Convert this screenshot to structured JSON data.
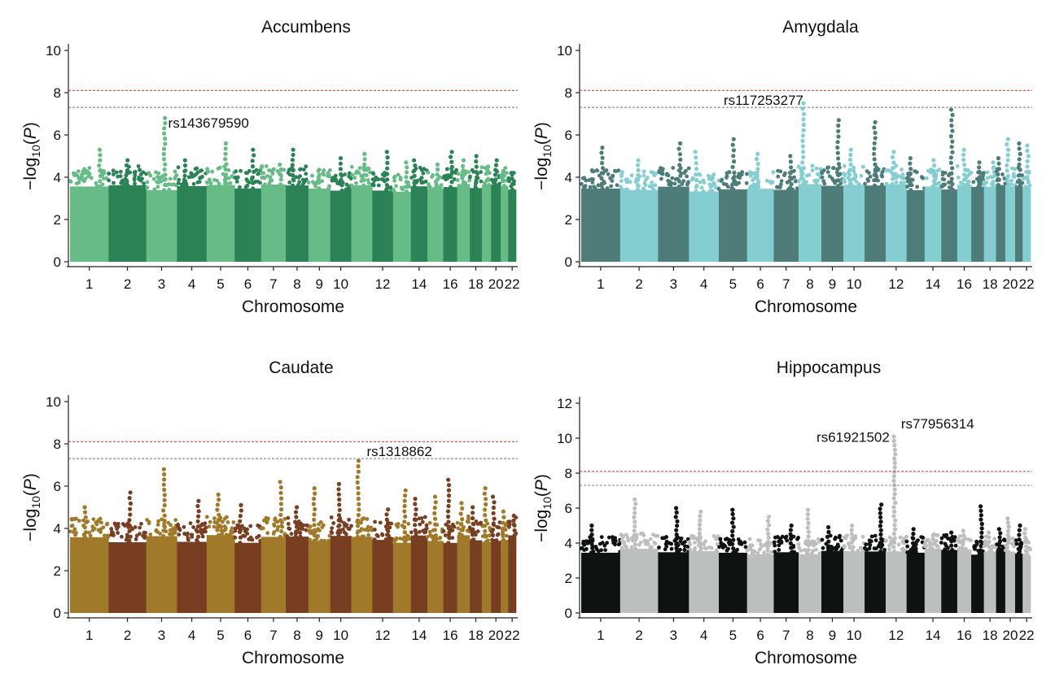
{
  "chart_data": [
    {
      "type": "scatter",
      "title": "Accumbens",
      "xlabel": "Chromosome",
      "ylabel": "−log10(P)",
      "ylim": [
        0,
        10
      ],
      "yticks": [
        0,
        2,
        4,
        6,
        8,
        10
      ],
      "xtick_labels": [
        "1",
        "2",
        "3",
        "4",
        "5",
        "6",
        "7",
        "8",
        "9",
        "10",
        "12",
        "14",
        "16",
        "18",
        "20",
        "22"
      ],
      "colors": [
        "#66bb86",
        "#2a8255"
      ],
      "thresholds": [
        {
          "value": 8.1,
          "color": "#e0534a"
        },
        {
          "value": 7.3,
          "color": "#9a9a9a"
        }
      ],
      "chromosomes": [
        {
          "chr": 1,
          "max": 5.3
        },
        {
          "chr": 2,
          "max": 4.8
        },
        {
          "chr": 3,
          "max": 6.8
        },
        {
          "chr": 4,
          "max": 4.8
        },
        {
          "chr": 5,
          "max": 5.6
        },
        {
          "chr": 6,
          "max": 5.3
        },
        {
          "chr": 7,
          "max": 4.6
        },
        {
          "chr": 8,
          "max": 5.3
        },
        {
          "chr": 9,
          "max": 4.3
        },
        {
          "chr": 10,
          "max": 4.9
        },
        {
          "chr": 11,
          "max": 5.1
        },
        {
          "chr": 12,
          "max": 5.2
        },
        {
          "chr": 13,
          "max": 4.7
        },
        {
          "chr": 14,
          "max": 4.8
        },
        {
          "chr": 15,
          "max": 4.6
        },
        {
          "chr": 16,
          "max": 5.2
        },
        {
          "chr": 17,
          "max": 4.8
        },
        {
          "chr": 18,
          "max": 5.0
        },
        {
          "chr": 19,
          "max": 4.5
        },
        {
          "chr": 20,
          "max": 4.8
        },
        {
          "chr": 21,
          "max": 4.3
        },
        {
          "chr": 22,
          "max": 4.2
        }
      ],
      "annotations": [
        {
          "text": "rs143679590",
          "chr": 3,
          "y": 6.8
        }
      ]
    },
    {
      "type": "scatter",
      "title": "Amygdala",
      "xlabel": "Chromosome",
      "ylabel": "−log10(P)",
      "ylim": [
        0,
        10
      ],
      "yticks": [
        0,
        2,
        4,
        6,
        8,
        10
      ],
      "xtick_labels": [
        "1",
        "2",
        "3",
        "4",
        "5",
        "6",
        "7",
        "8",
        "9",
        "10",
        "12",
        "14",
        "16",
        "18",
        "20",
        "22"
      ],
      "colors": [
        "#4e7c79",
        "#84ced2"
      ],
      "thresholds": [
        {
          "value": 8.1,
          "color": "#e0534a"
        },
        {
          "value": 7.3,
          "color": "#9a9a9a"
        }
      ],
      "chromosomes": [
        {
          "chr": 1,
          "max": 5.4
        },
        {
          "chr": 2,
          "max": 4.8
        },
        {
          "chr": 3,
          "max": 5.6
        },
        {
          "chr": 4,
          "max": 5.2
        },
        {
          "chr": 5,
          "max": 5.8
        },
        {
          "chr": 6,
          "max": 5.1
        },
        {
          "chr": 7,
          "max": 5.0
        },
        {
          "chr": 8,
          "max": 7.5
        },
        {
          "chr": 9,
          "max": 6.7
        },
        {
          "chr": 10,
          "max": 5.3
        },
        {
          "chr": 11,
          "max": 6.6
        },
        {
          "chr": 12,
          "max": 5.2
        },
        {
          "chr": 13,
          "max": 4.9
        },
        {
          "chr": 14,
          "max": 4.8
        },
        {
          "chr": 15,
          "max": 7.2
        },
        {
          "chr": 16,
          "max": 5.3
        },
        {
          "chr": 17,
          "max": 4.7
        },
        {
          "chr": 18,
          "max": 4.7
        },
        {
          "chr": 19,
          "max": 4.9
        },
        {
          "chr": 20,
          "max": 5.8
        },
        {
          "chr": 21,
          "max": 5.6
        },
        {
          "chr": 22,
          "max": 5.5
        }
      ],
      "annotations": [
        {
          "text": "rs117253277",
          "chr": 8,
          "y": 7.5
        }
      ]
    },
    {
      "type": "scatter",
      "title": "Caudate",
      "xlabel": "Chromosome",
      "ylabel": "−log10(P)",
      "ylim": [
        0,
        10
      ],
      "yticks": [
        0,
        2,
        4,
        6,
        8,
        10
      ],
      "xtick_labels": [
        "1",
        "2",
        "3",
        "4",
        "5",
        "6",
        "7",
        "8",
        "9",
        "10",
        "12",
        "14",
        "16",
        "18",
        "20",
        "22"
      ],
      "colors": [
        "#a07a2a",
        "#783e22"
      ],
      "thresholds": [
        {
          "value": 8.1,
          "color": "#e0534a"
        },
        {
          "value": 7.3,
          "color": "#9a9a9a"
        }
      ],
      "chromosomes": [
        {
          "chr": 1,
          "max": 5.0
        },
        {
          "chr": 2,
          "max": 5.7
        },
        {
          "chr": 3,
          "max": 6.8
        },
        {
          "chr": 4,
          "max": 5.3
        },
        {
          "chr": 5,
          "max": 5.6
        },
        {
          "chr": 6,
          "max": 5.1
        },
        {
          "chr": 7,
          "max": 6.2
        },
        {
          "chr": 8,
          "max": 5.0
        },
        {
          "chr": 9,
          "max": 5.9
        },
        {
          "chr": 10,
          "max": 6.1
        },
        {
          "chr": 11,
          "max": 7.2
        },
        {
          "chr": 12,
          "max": 4.9
        },
        {
          "chr": 13,
          "max": 5.8
        },
        {
          "chr": 14,
          "max": 5.4
        },
        {
          "chr": 15,
          "max": 5.5
        },
        {
          "chr": 16,
          "max": 6.3
        },
        {
          "chr": 17,
          "max": 5.2
        },
        {
          "chr": 18,
          "max": 5.0
        },
        {
          "chr": 19,
          "max": 5.9
        },
        {
          "chr": 20,
          "max": 5.5
        },
        {
          "chr": 21,
          "max": 4.8
        },
        {
          "chr": 22,
          "max": 4.6
        }
      ],
      "annotations": [
        {
          "text": "rs1318862",
          "chr": 11,
          "y": 7.2
        }
      ]
    },
    {
      "type": "scatter",
      "title": "Hippocampus",
      "xlabel": "Chromosome",
      "ylabel": "−log10(P)",
      "ylim": [
        0,
        12
      ],
      "yticks": [
        0,
        2,
        4,
        6,
        8,
        10,
        12
      ],
      "xtick_labels": [
        "1",
        "2",
        "3",
        "4",
        "5",
        "6",
        "7",
        "8",
        "9",
        "10",
        "12",
        "14",
        "16",
        "18",
        "20",
        "22"
      ],
      "colors": [
        "#0e1211",
        "#bcbfbd"
      ],
      "thresholds": [
        {
          "value": 8.1,
          "color": "#e0534a"
        },
        {
          "value": 7.3,
          "color": "#9a9a9a"
        }
      ],
      "chromosomes": [
        {
          "chr": 1,
          "max": 5.0
        },
        {
          "chr": 2,
          "max": 6.5
        },
        {
          "chr": 3,
          "max": 6.0
        },
        {
          "chr": 4,
          "max": 5.8
        },
        {
          "chr": 5,
          "max": 5.9
        },
        {
          "chr": 6,
          "max": 5.5
        },
        {
          "chr": 7,
          "max": 5.0
        },
        {
          "chr": 8,
          "max": 5.9
        },
        {
          "chr": 9,
          "max": 4.9
        },
        {
          "chr": 10,
          "max": 5.0
        },
        {
          "chr": 11,
          "max": 6.2
        },
        {
          "chr": 12,
          "max": 10.1
        },
        {
          "chr": 13,
          "max": 4.8
        },
        {
          "chr": 14,
          "max": 4.5
        },
        {
          "chr": 15,
          "max": 4.6
        },
        {
          "chr": 16,
          "max": 4.7
        },
        {
          "chr": 17,
          "max": 6.1
        },
        {
          "chr": 18,
          "max": 4.6
        },
        {
          "chr": 19,
          "max": 4.8
        },
        {
          "chr": 20,
          "max": 5.4
        },
        {
          "chr": 21,
          "max": 5.0
        },
        {
          "chr": 22,
          "max": 4.8
        }
      ],
      "annotations": [
        {
          "text": "rs61921502",
          "chr": 12,
          "y": 9.6
        },
        {
          "text": "rs77956314",
          "chr": 12,
          "y": 10.1
        }
      ]
    }
  ]
}
